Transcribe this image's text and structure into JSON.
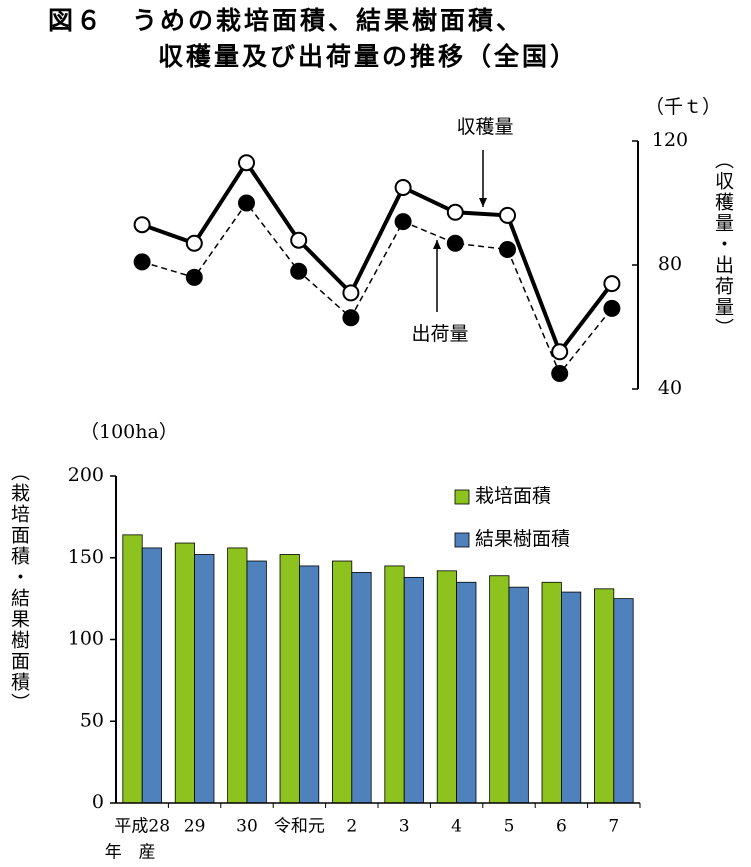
{
  "title": [
    "図６　うめの栽培面積、結果樹面積、",
    "収穫量及び出荷量の推移（全国）"
  ],
  "chart_data": [
    {
      "type": "line",
      "unit": "（千ｔ）",
      "y_label": "（収穫量・出荷量）",
      "y_axis_side": "right",
      "categories": [
        "平成28",
        "29",
        "30",
        "令和元",
        "2",
        "3",
        "4",
        "5",
        "6",
        "7"
      ],
      "ylim": [
        40,
        120
      ],
      "yticks": [
        40,
        80,
        120
      ],
      "series": [
        {
          "name": "収穫量",
          "color": "#000000",
          "linestyle": "solid",
          "marker_fill": "#ffffff",
          "values": [
            93,
            87,
            113,
            88,
            71,
            105,
            97,
            96,
            52,
            74
          ]
        },
        {
          "name": "出荷量",
          "color": "#000000",
          "linestyle": "dashed",
          "marker_fill": "#000000",
          "values": [
            81,
            76,
            100,
            78,
            63,
            94,
            87,
            85,
            45,
            66
          ]
        }
      ]
    },
    {
      "type": "bar",
      "unit": "（100ha）",
      "y_label": "（栽培面積・結果樹面積）",
      "y_axis_side": "left",
      "xlabel": "年　産",
      "categories": [
        "平成28",
        "29",
        "30",
        "令和元",
        "2",
        "3",
        "4",
        "5",
        "6",
        "7"
      ],
      "ylim": [
        0,
        200
      ],
      "yticks": [
        0,
        50,
        100,
        150,
        200
      ],
      "series": [
        {
          "name": "栽培面積",
          "color": "#8dc21f",
          "values": [
            164,
            159,
            156,
            152,
            148,
            145,
            142,
            139,
            135,
            131
          ]
        },
        {
          "name": "結果樹面積",
          "color": "#4f81bd",
          "values": [
            156,
            152,
            148,
            145,
            141,
            138,
            135,
            132,
            129,
            125
          ]
        }
      ]
    }
  ]
}
